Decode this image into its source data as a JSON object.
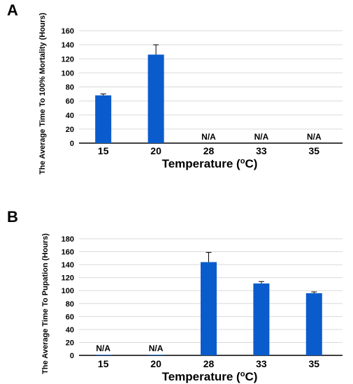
{
  "panels": [
    {
      "letter": "A",
      "chart_data": {
        "type": "bar",
        "categories": [
          "15",
          "20",
          "28",
          "33",
          "35"
        ],
        "values": [
          68,
          126,
          null,
          null,
          null
        ],
        "errors": [
          2,
          14,
          null,
          null,
          null
        ],
        "labels": [
          "",
          "",
          "N/A",
          "N/A",
          "N/A"
        ],
        "yticks": [
          "0",
          "20",
          "40",
          "60",
          "80",
          "100",
          "120",
          "140",
          "160"
        ],
        "ylim": [
          0,
          160
        ],
        "xlabel": "Temperature (",
        "xlabel_sup": "o",
        "xlabel_unit": "C)",
        "ylabel": "The Average Time To 100% Mortality (Hours)",
        "grid": true,
        "bar_color": "#0a5ccc"
      }
    },
    {
      "letter": "B",
      "chart_data": {
        "type": "bar",
        "categories": [
          "15",
          "20",
          "28",
          "33",
          "35"
        ],
        "values": [
          1,
          1,
          144,
          111,
          96
        ],
        "errors": [
          null,
          null,
          15,
          3,
          2
        ],
        "labels": [
          "N/A",
          "N/A",
          "",
          "",
          ""
        ],
        "yticks": [
          "0",
          "20",
          "40",
          "60",
          "80",
          "100",
          "120",
          "140",
          "160",
          "180"
        ],
        "ylim": [
          0,
          180
        ],
        "xlabel": "Temperature (",
        "xlabel_sup": "o",
        "xlabel_unit": "C)",
        "ylabel": "The Average Time To Pupation (Hours)",
        "grid": true,
        "bar_color": "#0a5ccc"
      }
    }
  ]
}
